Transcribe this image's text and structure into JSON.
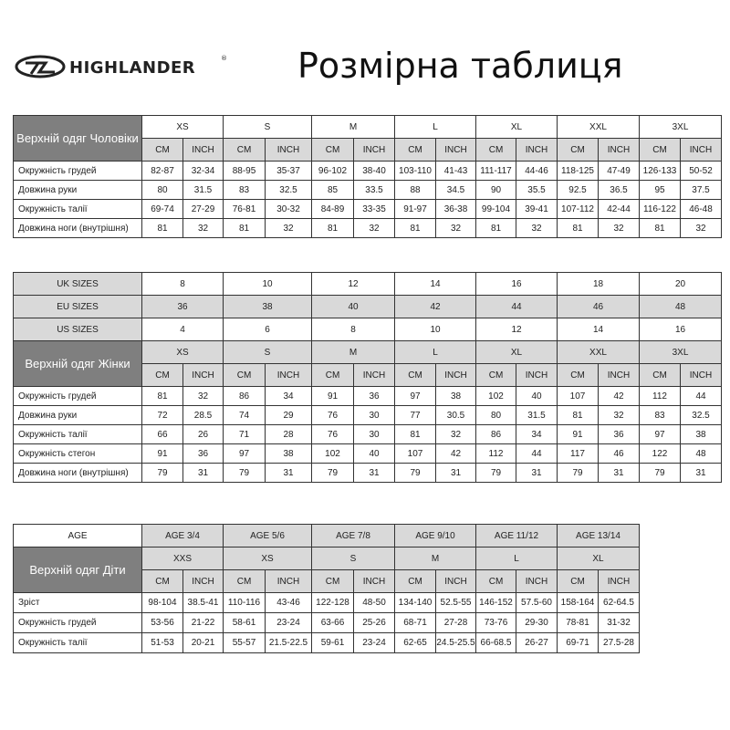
{
  "brand": {
    "name": "HIGHLANDER",
    "registered": "®"
  },
  "title": "Розмірна таблиця",
  "colors": {
    "header_dark": "#7f7f7f",
    "header_light": "#d9d9d9",
    "border": "#333333"
  },
  "units": [
    "CM",
    "INCH"
  ],
  "men": {
    "label": "Верхній одяг Чоловіки",
    "sizes": [
      "XS",
      "S",
      "M",
      "L",
      "XL",
      "XXL",
      "3XL"
    ],
    "rows": [
      {
        "label": "Окружність грудей",
        "values": [
          "82-87",
          "32-34",
          "88-95",
          "35-37",
          "96-102",
          "38-40",
          "103-110",
          "41-43",
          "111-117",
          "44-46",
          "118-125",
          "47-49",
          "126-133",
          "50-52"
        ]
      },
      {
        "label": "Довжина руки",
        "values": [
          "80",
          "31.5",
          "83",
          "32.5",
          "85",
          "33.5",
          "88",
          "34.5",
          "90",
          "35.5",
          "92.5",
          "36.5",
          "95",
          "37.5"
        ]
      },
      {
        "label": "Окружність талії",
        "values": [
          "69-74",
          "27-29",
          "76-81",
          "30-32",
          "84-89",
          "33-35",
          "91-97",
          "36-38",
          "99-104",
          "39-41",
          "107-112",
          "42-44",
          "116-122",
          "46-48"
        ]
      },
      {
        "label": "Довжина ноги (внутрішня)",
        "values": [
          "81",
          "32",
          "81",
          "32",
          "81",
          "32",
          "81",
          "32",
          "81",
          "32",
          "81",
          "32",
          "81",
          "32"
        ]
      }
    ]
  },
  "women": {
    "label": "Верхній одяг Жінки",
    "conversions": [
      {
        "label": "UK SIZES",
        "values": [
          "8",
          "10",
          "12",
          "14",
          "16",
          "18",
          "20"
        ]
      },
      {
        "label": "EU SIZES",
        "values": [
          "36",
          "38",
          "40",
          "42",
          "44",
          "46",
          "48"
        ]
      },
      {
        "label": "US SIZES",
        "values": [
          "4",
          "6",
          "8",
          "10",
          "12",
          "14",
          "16"
        ]
      }
    ],
    "sizes": [
      "XS",
      "S",
      "M",
      "L",
      "XL",
      "XXL",
      "3XL"
    ],
    "rows": [
      {
        "label": "Окружність грудей",
        "values": [
          "81",
          "32",
          "86",
          "34",
          "91",
          "36",
          "97",
          "38",
          "102",
          "40",
          "107",
          "42",
          "112",
          "44"
        ]
      },
      {
        "label": "Довжина руки",
        "values": [
          "72",
          "28.5",
          "74",
          "29",
          "76",
          "30",
          "77",
          "30.5",
          "80",
          "31.5",
          "81",
          "32",
          "83",
          "32.5"
        ]
      },
      {
        "label": "Окружність талії",
        "values": [
          "66",
          "26",
          "71",
          "28",
          "76",
          "30",
          "81",
          "32",
          "86",
          "34",
          "91",
          "36",
          "97",
          "38"
        ]
      },
      {
        "label": "Окружність стегон",
        "values": [
          "91",
          "36",
          "97",
          "38",
          "102",
          "40",
          "107",
          "42",
          "112",
          "44",
          "117",
          "46",
          "122",
          "48"
        ]
      },
      {
        "label": "Довжина ноги (внутрішня)",
        "values": [
          "79",
          "31",
          "79",
          "31",
          "79",
          "31",
          "79",
          "31",
          "79",
          "31",
          "79",
          "31",
          "79",
          "31"
        ]
      }
    ]
  },
  "kids": {
    "label": "Верхній одяг Діти",
    "age_label": "AGE",
    "ages": [
      "AGE 3/4",
      "AGE 5/6",
      "AGE 7/8",
      "AGE 9/10",
      "AGE 11/12",
      "AGE 13/14"
    ],
    "sizes": [
      "XXS",
      "XS",
      "S",
      "M",
      "L",
      "XL"
    ],
    "rows": [
      {
        "label": "Зріст",
        "values": [
          "98-104",
          "38.5-41",
          "110-116",
          "43-46",
          "122-128",
          "48-50",
          "134-140",
          "52.5-55",
          "146-152",
          "57.5-60",
          "158-164",
          "62-64.5"
        ]
      },
      {
        "label": "Окружність грудей",
        "values": [
          "53-56",
          "21-22",
          "58-61",
          "23-24",
          "63-66",
          "25-26",
          "68-71",
          "27-28",
          "73-76",
          "29-30",
          "78-81",
          "31-32"
        ]
      },
      {
        "label": "Окружність талії",
        "values": [
          "51-53",
          "20-21",
          "55-57",
          "21.5-22.5",
          "59-61",
          "23-24",
          "62-65",
          "24.5-25.5",
          "66-68.5",
          "26-27",
          "69-71",
          "27.5-28"
        ]
      }
    ]
  }
}
